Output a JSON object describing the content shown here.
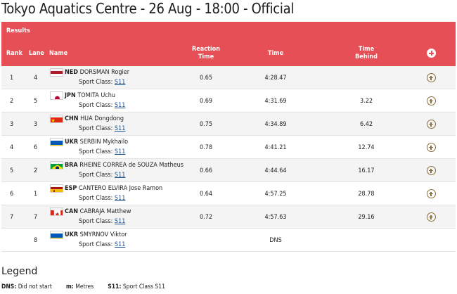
{
  "page_title": "Tokyo Aquatics Centre - 26 Aug - 18:00 - Official",
  "results_label": "Results",
  "columns": {
    "rank": "Rank",
    "lane": "Lane",
    "name": "Name",
    "reaction": "Reaction Time",
    "time": "Time",
    "behind": "Time Behind"
  },
  "sport_class_label": "Sport Class:",
  "rows": [
    {
      "rank": "1",
      "lane": "4",
      "noc": "NED",
      "name": "DORSMAN Rogier",
      "sport_class": "S11",
      "reaction": "0.65",
      "time": "4:28.47",
      "behind": "",
      "flag": "NED"
    },
    {
      "rank": "2",
      "lane": "5",
      "noc": "JPN",
      "name": "TOMITA Uchu",
      "sport_class": "S11",
      "reaction": "0.69",
      "time": "4:31.69",
      "behind": "3.22",
      "flag": "JPN"
    },
    {
      "rank": "3",
      "lane": "3",
      "noc": "CHN",
      "name": "HUA Dongdong",
      "sport_class": "S11",
      "reaction": "0.75",
      "time": "4:34.89",
      "behind": "6.42",
      "flag": "CHN"
    },
    {
      "rank": "4",
      "lane": "6",
      "noc": "UKR",
      "name": "SERBIN Mykhailo",
      "sport_class": "S11",
      "reaction": "0.78",
      "time": "4:41.21",
      "behind": "12.74",
      "flag": "UKR"
    },
    {
      "rank": "5",
      "lane": "2",
      "noc": "BRA",
      "name": "RHEINE CORREA de SOUZA Matheus",
      "sport_class": "S11",
      "reaction": "0.66",
      "time": "4:44.64",
      "behind": "16.17",
      "flag": "BRA"
    },
    {
      "rank": "6",
      "lane": "1",
      "noc": "ESP",
      "name": "CANTERO ELVIRA Jose Ramon",
      "sport_class": "S11",
      "reaction": "0.64",
      "time": "4:57.25",
      "behind": "28.78",
      "flag": "ESP"
    },
    {
      "rank": "7",
      "lane": "7",
      "noc": "CAN",
      "name": "CABRAJA Matthew",
      "sport_class": "S11",
      "reaction": "0.72",
      "time": "4:57.63",
      "behind": "29.16",
      "flag": "CAN"
    },
    {
      "rank": "",
      "lane": "8",
      "noc": "UKR",
      "name": "SMYRNOV Viktor",
      "sport_class": "S11",
      "reaction": "",
      "time": "DNS",
      "behind": "",
      "flag": "UKR"
    }
  ],
  "legend": {
    "title": "Legend",
    "items": [
      {
        "code": "DNS:",
        "desc": "Did not start"
      },
      {
        "code": "m:",
        "desc": "Metres"
      },
      {
        "code": "S11:",
        "desc": "Sport Class S11"
      }
    ]
  },
  "colors": {
    "header_bg": "#e64f55",
    "accent_icon": "#8a6d3b"
  }
}
